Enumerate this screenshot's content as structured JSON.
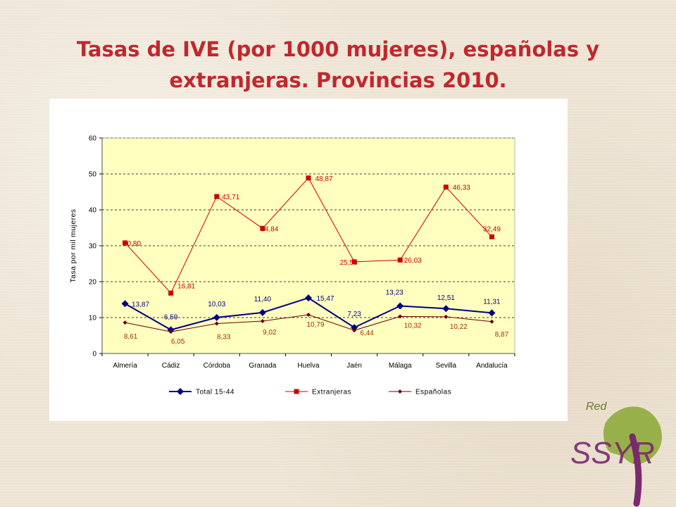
{
  "slide": {
    "title_line1": "Tasas de IVE (por 1000 mujeres), españolas y",
    "title_line2": "extranjeras. Provincias 2010."
  },
  "chart_data": {
    "type": "line",
    "title": "",
    "xlabel": "",
    "ylabel": "Tasa por mil mujeres",
    "ylim": [
      0,
      60
    ],
    "yticks": [
      0,
      10,
      20,
      30,
      40,
      50,
      60
    ],
    "grid": true,
    "legend_position": "bottom",
    "categories": [
      "Almería",
      "Cádiz",
      "Córdoba",
      "Granada",
      "Huelva",
      "Jaén",
      "Málaga",
      "Sevilla",
      "Andalucía"
    ],
    "series": [
      {
        "name": "Total 15-44",
        "values": [
          13.87,
          6.59,
          10.03,
          11.4,
          15.47,
          7.23,
          13.23,
          12.51,
          11.31
        ],
        "labels": [
          "13,87",
          "6,59",
          "10,03",
          "11,40",
          "15,47",
          "7,23",
          "13,23",
          "12,51",
          "11,31"
        ],
        "color": "#000080",
        "label_color": "#000080",
        "marker": "diamond"
      },
      {
        "name": "Extranjeras",
        "values": [
          30.8,
          16.81,
          43.71,
          34.84,
          48.87,
          25.53,
          26.03,
          46.33,
          32.49
        ],
        "labels": [
          "30,80",
          "16,81",
          "43,71",
          "34,84",
          "48,87",
          "25,53",
          "26,03",
          "46,33",
          "32,49"
        ],
        "color": "#cc0000",
        "label_color": "#cc0000",
        "marker": "square"
      },
      {
        "name": "Españolas",
        "values": [
          8.61,
          6.05,
          8.33,
          9.02,
          10.79,
          6.44,
          10.32,
          10.22,
          8.87
        ],
        "labels": [
          "8,61",
          "6,05",
          "8,33",
          "9,02",
          "10,79",
          "6,44",
          "10,32",
          "10,22",
          "8,87"
        ],
        "color": "#660000",
        "label_color": "#993300",
        "marker": "small-diamond"
      }
    ],
    "colors": {
      "plot_background": "#ffffc0",
      "gridline": "#000000"
    }
  },
  "logo": {
    "text_small": "Red",
    "text_main": "SSYR",
    "colors": {
      "purple": "#7a2a6e",
      "green": "#8aa832",
      "olive": "#6f7a2a"
    }
  }
}
